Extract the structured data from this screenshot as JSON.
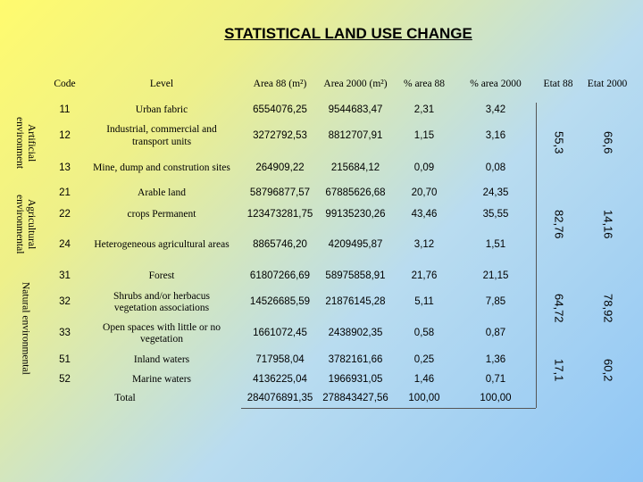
{
  "title": "STATISTICAL LAND USE CHANGE",
  "table": {
    "columns": [
      "Code",
      "Level",
      "Area 88 (m²)",
      "Area 2000 (m²)",
      "% area 88",
      "% area 2000",
      "Etat 88",
      "Etat 2000"
    ],
    "sections": [
      {
        "label": "Artificial environment",
        "blocks": [
          {
            "etat_88": "55,3",
            "etat_2000": "66,6",
            "rows": [
              [
                "11",
                "Urban fabric",
                "6554076,25",
                "9544683,47",
                "2,31",
                "3,42"
              ],
              [
                "12",
                "Industrial, commercial and transport units",
                "3272792,53",
                "8812707,91",
                "1,15",
                "3,16"
              ],
              [
                "13",
                "Mine, dump and constrution sites",
                "264909,22",
                "215684,12",
                "0,09",
                "0,08"
              ]
            ]
          }
        ]
      },
      {
        "label": "Agricultural environmental",
        "blocks": [
          {
            "etat_88": "82,76",
            "etat_2000": "14,16",
            "rows": [
              [
                "21",
                "Arable land",
                "58796877,57",
                "67885626,68",
                "20,70",
                "24,35"
              ],
              [
                "22",
                "crops Permanent",
                "123473281,75",
                "99135230,26",
                "43,46",
                "35,55"
              ],
              [
                "24",
                "Heterogeneous agricultural areas",
                "8865746,20",
                "4209495,87",
                "3,12",
                "1,51"
              ]
            ]
          }
        ]
      },
      {
        "label": "Natural environmental",
        "blocks": [
          {
            "etat_88": "64,72",
            "etat_2000": "78,92",
            "rows": [
              [
                "31",
                "Forest",
                "61807266,69",
                "58975858,91",
                "21,76",
                "21,15"
              ],
              [
                "32",
                "Shrubs and/or herbacus vegetation associations",
                "14526685,59",
                "21876145,28",
                "5,11",
                "7,85"
              ],
              [
                "33",
                "Open spaces with little or no vegetation",
                "1661072,45",
                "2438902,35",
                "0,58",
                "0,87"
              ]
            ]
          },
          {
            "etat_88": "17,1",
            "etat_2000": "60,2",
            "rows": [
              [
                "51",
                "Inland waters",
                "717958,04",
                "3782161,66",
                "0,25",
                "1,36"
              ],
              [
                "52",
                "Marine waters",
                "4136225,04",
                "1966931,05",
                "1,46",
                "0,71"
              ]
            ]
          }
        ]
      }
    ],
    "total": {
      "label": "Total",
      "values": [
        "284076891,35",
        "278843427,56",
        "100,00",
        "100,00"
      ]
    }
  }
}
